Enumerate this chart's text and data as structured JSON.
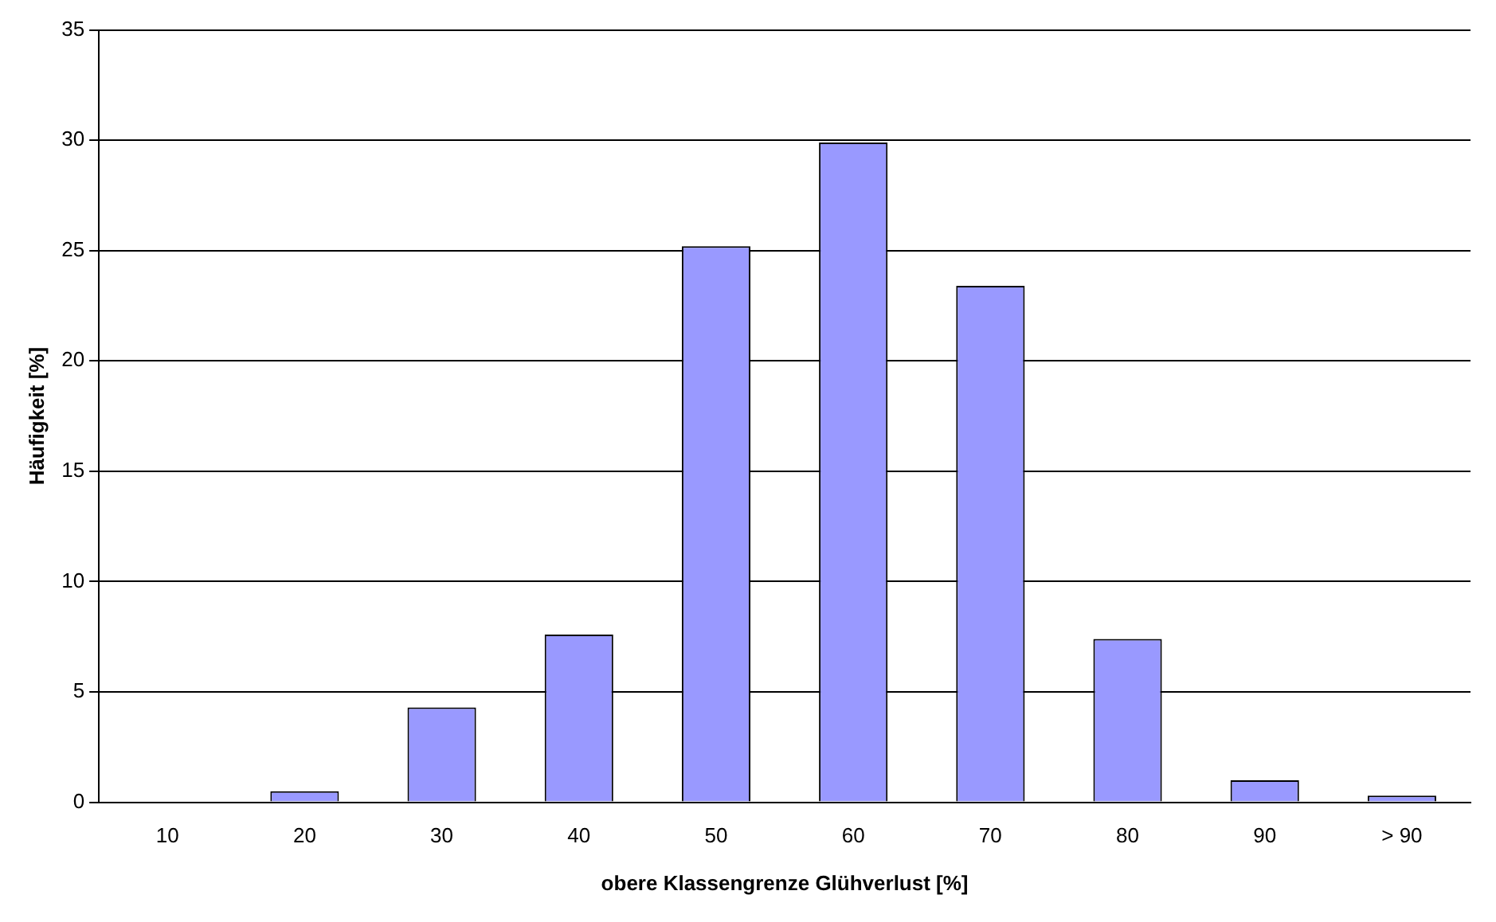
{
  "chart_data": {
    "type": "bar",
    "xlabel": "obere Klassengrenze Glühverlust [%]",
    "ylabel": "Häufigkeit [%]",
    "categories": [
      "10",
      "20",
      "30",
      "40",
      "50",
      "60",
      "70",
      "80",
      "90",
      "> 90"
    ],
    "values": [
      0,
      0.5,
      4.3,
      7.6,
      25.2,
      29.9,
      23.4,
      7.4,
      1.0,
      0.3
    ],
    "color": "#9999ff",
    "ylim": [
      0,
      35
    ],
    "yticks": [
      0,
      5,
      10,
      15,
      20,
      25,
      30,
      35
    ],
    "grid": "y",
    "legend": false
  }
}
